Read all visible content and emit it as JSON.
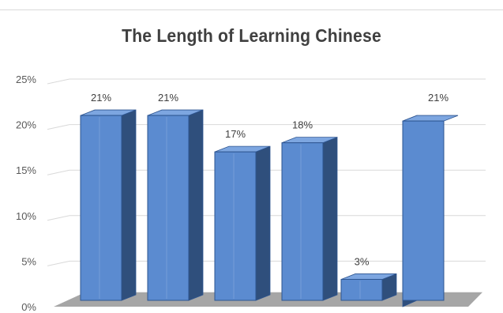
{
  "chart_data": {
    "type": "bar",
    "title": "The Length of Learning Chinese",
    "categories": [
      "",
      "",
      "",
      "",
      "",
      ""
    ],
    "values": [
      21,
      21,
      17,
      18,
      3,
      21
    ],
    "data_labels": [
      "21%",
      "21%",
      "17%",
      "18%",
      "3%",
      "21%"
    ],
    "y_ticks": [
      "0%",
      "5%",
      "10%",
      "15%",
      "20%",
      "25%"
    ],
    "ylim": [
      0,
      25
    ],
    "xlabel": "",
    "ylabel": "",
    "grid": true,
    "style": "3d-column",
    "colors": {
      "bar_front": "#5b8bd0",
      "bar_side": "#2f4f7c",
      "bar_top": "#7da6e0",
      "bar_edge": "#2e5590",
      "floor": "#a6a6a6",
      "grid": "#d9d9d9"
    }
  }
}
